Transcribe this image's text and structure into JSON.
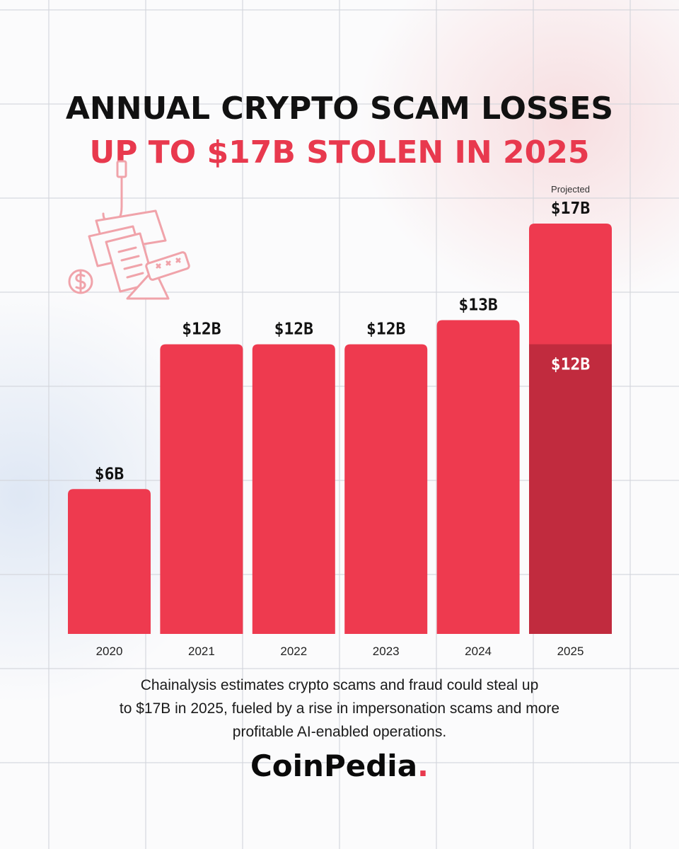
{
  "header": {
    "title": "ANNUAL CRYPTO SCAM LOSSES",
    "subtitle": "UP TO $17B STOLEN IN 2025"
  },
  "illustration": {
    "icon": "phishing-hook-envelope-icon"
  },
  "chart_data": {
    "type": "bar",
    "title": "ANNUAL CRYPTO SCAM LOSSES",
    "subtitle": "UP TO $17B STOLEN IN 2025",
    "xlabel": "",
    "ylabel": "",
    "ylim": [
      0,
      17
    ],
    "grid": false,
    "unit": "$B",
    "categories": [
      "2020",
      "2021",
      "2022",
      "2023",
      "2024",
      "2025"
    ],
    "values": [
      6,
      12,
      12,
      12,
      13,
      17
    ],
    "value_labels": [
      "$6B",
      "$12B",
      "$12B",
      "$12B",
      "$13B",
      "$17B"
    ],
    "base_values": [
      null,
      null,
      null,
      null,
      null,
      12
    ],
    "base_labels": [
      null,
      null,
      null,
      null,
      null,
      "$12B"
    ],
    "projected_label": "Projected",
    "projected_index": 5,
    "colors": {
      "bar": "#ee3a4f",
      "base": "#c12b3e",
      "label": "#111111",
      "base_label": "#ffffff"
    }
  },
  "footer": {
    "caption_lines": [
      "Chainalysis estimates crypto scams and fraud could steal up",
      "to $17B in 2025, fueled by a rise in impersonation scams and more",
      "profitable AI-enabled operations."
    ],
    "logo_text": "CoinPedia",
    "logo_dot": "."
  }
}
